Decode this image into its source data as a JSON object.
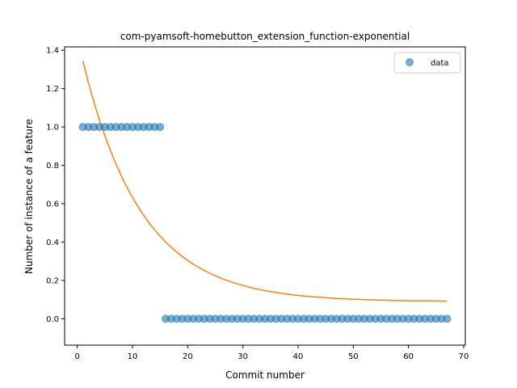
{
  "chart_data": {
    "type": "scatter",
    "title": "com-pyamsoft-homebutton_extension_function-exponential",
    "xlabel": "Commit number",
    "ylabel": "Number of instance of a feature",
    "xlim": [
      -2.3,
      70.3
    ],
    "ylim": [
      -0.1375,
      1.4175
    ],
    "xticks": [
      0,
      10,
      20,
      30,
      40,
      50,
      60,
      70
    ],
    "yticks": [
      0.0,
      0.2,
      0.4,
      0.6,
      0.8,
      1.0,
      1.2,
      1.4
    ],
    "xtick_labels": [
      "0",
      "10",
      "20",
      "30",
      "40",
      "50",
      "60",
      "70"
    ],
    "ytick_labels": [
      "0.0",
      "0.2",
      "0.4",
      "0.6",
      "0.8",
      "1.0",
      "1.2",
      "1.4"
    ],
    "grid": false,
    "legend_position": "top-right",
    "series": [
      {
        "name": "data",
        "kind": "scatter",
        "color": "#1f77b4",
        "x": [
          1,
          2,
          3,
          4,
          5,
          6,
          7,
          8,
          9,
          10,
          11,
          12,
          13,
          14,
          15,
          16,
          17,
          18,
          19,
          20,
          21,
          22,
          23,
          24,
          25,
          26,
          27,
          28,
          29,
          30,
          31,
          32,
          33,
          34,
          35,
          36,
          37,
          38,
          39,
          40,
          41,
          42,
          43,
          44,
          45,
          46,
          47,
          48,
          49,
          50,
          51,
          52,
          53,
          54,
          55,
          56,
          57,
          58,
          59,
          60,
          61,
          62,
          63,
          64,
          65,
          66,
          67
        ],
        "y": [
          1,
          1,
          1,
          1,
          1,
          1,
          1,
          1,
          1,
          1,
          1,
          1,
          1,
          1,
          1,
          0,
          0,
          0,
          0,
          0,
          0,
          0,
          0,
          0,
          0,
          0,
          0,
          0,
          0,
          0,
          0,
          0,
          0,
          0,
          0,
          0,
          0,
          0,
          0,
          0,
          0,
          0,
          0,
          0,
          0,
          0,
          0,
          0,
          0,
          0,
          0,
          0,
          0,
          0,
          0,
          0,
          0,
          0,
          0,
          0,
          0,
          0,
          0,
          0,
          0,
          0,
          0
        ]
      },
      {
        "kind": "line",
        "color": "#ff7f0e",
        "x": [
          1,
          2,
          3,
          4,
          5,
          6,
          7,
          8,
          9,
          10,
          11,
          12,
          13,
          14,
          15,
          16,
          17,
          18,
          19,
          20,
          21,
          22,
          23,
          24,
          25,
          26,
          27,
          28,
          29,
          30,
          31,
          32,
          33,
          34,
          35,
          36,
          37,
          38,
          39,
          40,
          41,
          42,
          43,
          44,
          45,
          46,
          47,
          48,
          49,
          50,
          51,
          52,
          53,
          54,
          55,
          56,
          57,
          58,
          59,
          60,
          61,
          62,
          63,
          64,
          65,
          66,
          67
        ],
        "y": [
          1.345,
          1.233,
          1.131,
          1.038,
          0.954,
          0.877,
          0.807,
          0.743,
          0.685,
          0.632,
          0.584,
          0.54,
          0.5,
          0.464,
          0.431,
          0.401,
          0.373,
          0.348,
          0.325,
          0.304,
          0.285,
          0.268,
          0.252,
          0.237,
          0.224,
          0.212,
          0.201,
          0.191,
          0.182,
          0.174,
          0.166,
          0.159,
          0.153,
          0.147,
          0.142,
          0.137,
          0.133,
          0.129,
          0.125,
          0.122,
          0.119,
          0.116,
          0.114,
          0.112,
          0.11,
          0.108,
          0.106,
          0.105,
          0.103,
          0.102,
          0.101,
          0.1,
          0.099,
          0.098,
          0.097,
          0.097,
          0.096,
          0.095,
          0.095,
          0.094,
          0.094,
          0.094,
          0.093,
          0.093,
          0.093,
          0.092,
          0.092
        ]
      }
    ]
  }
}
